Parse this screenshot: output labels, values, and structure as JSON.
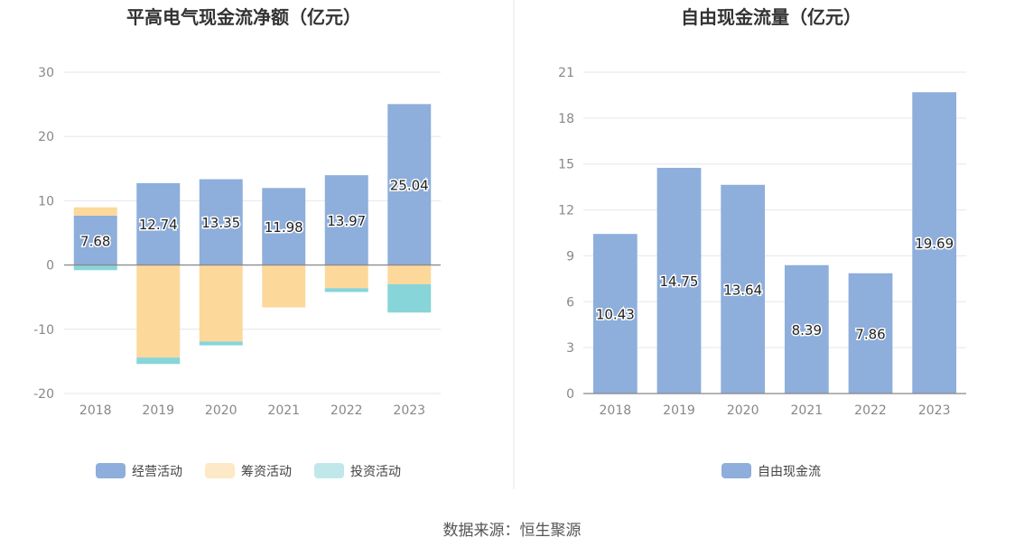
{
  "source_text": "数据来源：恒生聚源",
  "chart_data": [
    {
      "type": "bar",
      "stacked": true,
      "title": "平高电气现金流净额（亿元）",
      "categories": [
        "2018",
        "2019",
        "2020",
        "2021",
        "2022",
        "2023"
      ],
      "ylim": [
        -20,
        30
      ],
      "yticks": [
        30,
        20,
        10,
        0,
        -10,
        -20
      ],
      "grid": true,
      "legend_position": "bottom",
      "series": [
        {
          "name": "经营活动",
          "color": "#8eaedb",
          "values": [
            7.68,
            12.74,
            13.35,
            11.98,
            13.97,
            25.04
          ],
          "labels": [
            "7.68",
            "12.74",
            "13.35",
            "11.98",
            "13.97",
            "25.04"
          ]
        },
        {
          "name": "筹资活动",
          "color": "#fdd89b",
          "legend_color": "#fde8c8",
          "values": [
            1.3,
            -14.4,
            -11.9,
            -6.6,
            -3.6,
            -3.0
          ]
        },
        {
          "name": "投资活动",
          "color": "#87d5d8",
          "legend_color": "#c0e8ea",
          "values": [
            -0.8,
            -1.0,
            -0.6,
            0,
            -0.6,
            -4.4
          ]
        }
      ]
    },
    {
      "type": "bar",
      "title": "自由现金流量（亿元）",
      "categories": [
        "2018",
        "2019",
        "2020",
        "2021",
        "2022",
        "2023"
      ],
      "ylim": [
        0,
        21
      ],
      "yticks": [
        21,
        18,
        15,
        12,
        9,
        6,
        3,
        0
      ],
      "grid": true,
      "legend_position": "bottom",
      "series": [
        {
          "name": "自由现金流",
          "color": "#8eaedb",
          "values": [
            10.43,
            14.75,
            13.64,
            8.39,
            7.86,
            19.69
          ],
          "labels": [
            "10.43",
            "14.75",
            "13.64",
            "8.39",
            "7.86",
            "19.69"
          ]
        }
      ]
    }
  ]
}
